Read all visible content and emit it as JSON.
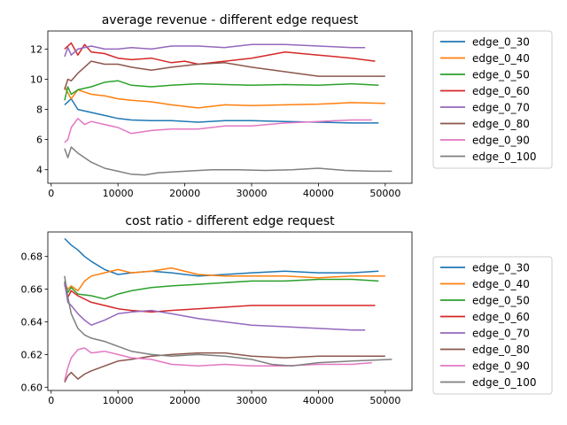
{
  "figure": {
    "background": "#ffffff"
  },
  "chart_data": [
    {
      "type": "line",
      "title": "average revenue - different edge request",
      "xlabel": "",
      "ylabel": "",
      "xlim": [
        -500,
        54000
      ],
      "ylim": [
        3.1,
        13.2
      ],
      "xticks": [
        0,
        10000,
        20000,
        30000,
        40000,
        50000
      ],
      "yticks": [
        4,
        6,
        8,
        10,
        12
      ],
      "ytick_decimals": 0,
      "grid": false,
      "legend_position": "outside-right",
      "series": [
        {
          "name": "edge_0_30",
          "color": "#1f77b4",
          "x": [
            2000,
            3000,
            4000,
            6000,
            8000,
            10000,
            12000,
            15000,
            18000,
            22000,
            26000,
            30000,
            35000,
            40000,
            45000,
            49000
          ],
          "y": [
            8.3,
            8.7,
            8.0,
            7.8,
            7.6,
            7.4,
            7.3,
            7.25,
            7.25,
            7.15,
            7.25,
            7.25,
            7.2,
            7.15,
            7.1,
            7.1
          ]
        },
        {
          "name": "edge_0_40",
          "color": "#ff7f0e",
          "x": [
            2000,
            3000,
            4000,
            6000,
            8000,
            10000,
            12000,
            15000,
            18000,
            22000,
            26000,
            30000,
            35000,
            40000,
            45000,
            50000
          ],
          "y": [
            9.5,
            8.7,
            9.3,
            9.0,
            8.9,
            8.7,
            8.6,
            8.5,
            8.3,
            8.1,
            8.3,
            8.25,
            8.3,
            8.35,
            8.45,
            8.4
          ]
        },
        {
          "name": "edge_0_50",
          "color": "#2ca02c",
          "x": [
            2000,
            2500,
            3000,
            4000,
            6000,
            8000,
            10000,
            12000,
            15000,
            18000,
            22000,
            26000,
            30000,
            35000,
            40000,
            45000,
            49000
          ],
          "y": [
            8.6,
            9.5,
            9.0,
            9.3,
            9.5,
            9.8,
            9.9,
            9.6,
            9.5,
            9.6,
            9.7,
            9.65,
            9.6,
            9.65,
            9.6,
            9.7,
            9.6
          ]
        },
        {
          "name": "edge_0_60",
          "color": "#d62728",
          "x": [
            2000,
            3000,
            4000,
            5000,
            6000,
            8000,
            10000,
            12000,
            15000,
            18000,
            20000,
            22000,
            26000,
            30000,
            35000,
            40000,
            45000,
            48500
          ],
          "y": [
            12.0,
            12.4,
            11.6,
            12.3,
            11.8,
            11.7,
            11.4,
            11.3,
            11.4,
            11.1,
            11.2,
            11.0,
            11.2,
            11.4,
            11.8,
            11.6,
            11.4,
            11.2
          ]
        },
        {
          "name": "edge_0_70",
          "color": "#9467bd",
          "x": [
            2000,
            2500,
            3000,
            4000,
            6000,
            8000,
            10000,
            12000,
            15000,
            18000,
            22000,
            26000,
            30000,
            35000,
            40000,
            45000,
            47000
          ],
          "y": [
            11.5,
            12.1,
            11.6,
            12.0,
            12.2,
            12.0,
            12.0,
            12.1,
            12.0,
            12.2,
            12.2,
            12.1,
            12.3,
            12.3,
            12.2,
            12.1,
            12.1
          ]
        },
        {
          "name": "edge_0_80",
          "color": "#8c564b",
          "x": [
            2000,
            2500,
            3000,
            4000,
            6000,
            8000,
            10000,
            12000,
            15000,
            18000,
            22000,
            26000,
            30000,
            35000,
            40000,
            45000,
            50000
          ],
          "y": [
            9.3,
            10.0,
            9.9,
            10.4,
            11.2,
            11.0,
            11.0,
            10.8,
            10.6,
            10.8,
            11.0,
            11.1,
            10.8,
            10.5,
            10.2,
            10.2,
            10.2
          ]
        },
        {
          "name": "edge_0_90",
          "color": "#e377c2",
          "x": [
            2000,
            2500,
            3000,
            4000,
            5000,
            6000,
            8000,
            10000,
            12000,
            15000,
            18000,
            22000,
            26000,
            30000,
            35000,
            40000,
            45000,
            48000
          ],
          "y": [
            5.8,
            6.0,
            6.8,
            7.4,
            7.0,
            7.2,
            7.0,
            6.8,
            6.4,
            6.6,
            6.7,
            6.7,
            6.9,
            6.9,
            7.1,
            7.2,
            7.3,
            7.3
          ]
        },
        {
          "name": "edge_0_100",
          "color": "#7f7f7f",
          "x": [
            2000,
            2500,
            3000,
            4000,
            6000,
            8000,
            10000,
            12000,
            14000,
            16000,
            20000,
            24000,
            28000,
            32000,
            36000,
            40000,
            44000,
            48000,
            51000
          ],
          "y": [
            5.4,
            4.8,
            5.5,
            5.1,
            4.5,
            4.1,
            3.9,
            3.7,
            3.65,
            3.8,
            3.9,
            4.0,
            4.0,
            3.95,
            4.0,
            4.1,
            3.95,
            3.9,
            3.9
          ]
        }
      ]
    },
    {
      "type": "line",
      "title": "cost ratio - different edge request",
      "xlabel": "",
      "ylabel": "",
      "xlim": [
        -500,
        54000
      ],
      "ylim": [
        0.598,
        0.695
      ],
      "xticks": [
        0,
        10000,
        20000,
        30000,
        40000,
        50000
      ],
      "yticks": [
        0.6,
        0.62,
        0.64,
        0.66,
        0.68
      ],
      "ytick_decimals": 2,
      "grid": false,
      "legend_position": "outside-right",
      "series": [
        {
          "name": "edge_0_30",
          "color": "#1f77b4",
          "x": [
            2000,
            2500,
            3000,
            4000,
            5000,
            6000,
            8000,
            10000,
            12000,
            15000,
            18000,
            22000,
            26000,
            30000,
            35000,
            40000,
            45000,
            49000
          ],
          "y": [
            0.691,
            0.689,
            0.687,
            0.684,
            0.68,
            0.677,
            0.672,
            0.669,
            0.67,
            0.671,
            0.67,
            0.668,
            0.669,
            0.67,
            0.671,
            0.67,
            0.67,
            0.671
          ]
        },
        {
          "name": "edge_0_40",
          "color": "#ff7f0e",
          "x": [
            2000,
            2500,
            3000,
            4000,
            5000,
            6000,
            8000,
            10000,
            12000,
            15000,
            18000,
            22000,
            26000,
            30000,
            35000,
            40000,
            45000,
            50000
          ],
          "y": [
            0.664,
            0.66,
            0.662,
            0.659,
            0.665,
            0.668,
            0.67,
            0.672,
            0.67,
            0.671,
            0.673,
            0.669,
            0.668,
            0.668,
            0.668,
            0.667,
            0.668,
            0.668
          ]
        },
        {
          "name": "edge_0_50",
          "color": "#2ca02c",
          "x": [
            2000,
            2500,
            3000,
            4000,
            6000,
            8000,
            10000,
            12000,
            15000,
            18000,
            22000,
            26000,
            30000,
            35000,
            40000,
            45000,
            49000
          ],
          "y": [
            0.665,
            0.658,
            0.661,
            0.657,
            0.656,
            0.654,
            0.657,
            0.659,
            0.661,
            0.662,
            0.663,
            0.664,
            0.665,
            0.665,
            0.666,
            0.666,
            0.665
          ]
        },
        {
          "name": "edge_0_60",
          "color": "#d62728",
          "x": [
            2000,
            2500,
            3000,
            4000,
            6000,
            8000,
            10000,
            12000,
            15000,
            18000,
            22000,
            26000,
            30000,
            35000,
            40000,
            45000,
            48500
          ],
          "y": [
            0.663,
            0.655,
            0.659,
            0.656,
            0.652,
            0.65,
            0.648,
            0.647,
            0.646,
            0.647,
            0.648,
            0.649,
            0.65,
            0.65,
            0.65,
            0.65,
            0.65
          ]
        },
        {
          "name": "edge_0_70",
          "color": "#9467bd",
          "x": [
            2000,
            2500,
            3000,
            4000,
            5000,
            6000,
            8000,
            10000,
            12000,
            15000,
            18000,
            22000,
            26000,
            30000,
            35000,
            40000,
            45000,
            47000
          ],
          "y": [
            0.664,
            0.652,
            0.65,
            0.645,
            0.641,
            0.638,
            0.641,
            0.645,
            0.646,
            0.647,
            0.645,
            0.642,
            0.64,
            0.638,
            0.637,
            0.636,
            0.635,
            0.635
          ]
        },
        {
          "name": "edge_0_80",
          "color": "#8c564b",
          "x": [
            2000,
            2500,
            3000,
            4000,
            5000,
            6000,
            8000,
            10000,
            12000,
            15000,
            18000,
            22000,
            26000,
            30000,
            35000,
            40000,
            45000,
            50000
          ],
          "y": [
            0.603,
            0.607,
            0.609,
            0.605,
            0.608,
            0.61,
            0.613,
            0.616,
            0.617,
            0.619,
            0.62,
            0.621,
            0.621,
            0.619,
            0.618,
            0.619,
            0.619,
            0.619
          ]
        },
        {
          "name": "edge_0_90",
          "color": "#e377c2",
          "x": [
            2000,
            2500,
            3000,
            4000,
            5000,
            6000,
            8000,
            10000,
            12000,
            15000,
            18000,
            22000,
            26000,
            30000,
            35000,
            40000,
            45000,
            48000
          ],
          "y": [
            0.604,
            0.612,
            0.618,
            0.623,
            0.624,
            0.621,
            0.622,
            0.62,
            0.618,
            0.617,
            0.614,
            0.613,
            0.614,
            0.613,
            0.613,
            0.614,
            0.614,
            0.615
          ]
        },
        {
          "name": "edge_0_100",
          "color": "#7f7f7f",
          "x": [
            2000,
            2500,
            3000,
            4000,
            5000,
            6000,
            8000,
            10000,
            12000,
            15000,
            18000,
            22000,
            26000,
            30000,
            33000,
            36000,
            40000,
            45000,
            51000
          ],
          "y": [
            0.668,
            0.655,
            0.645,
            0.636,
            0.632,
            0.63,
            0.628,
            0.625,
            0.622,
            0.62,
            0.619,
            0.62,
            0.619,
            0.617,
            0.614,
            0.613,
            0.615,
            0.616,
            0.617
          ]
        }
      ]
    }
  ]
}
